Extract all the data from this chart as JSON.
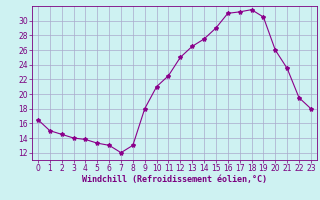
{
  "x": [
    0,
    1,
    2,
    3,
    4,
    5,
    6,
    7,
    8,
    9,
    10,
    11,
    12,
    13,
    14,
    15,
    16,
    17,
    18,
    19,
    20,
    21,
    22,
    23
  ],
  "y": [
    16.5,
    15.0,
    14.5,
    14.0,
    13.8,
    13.3,
    13.0,
    12.0,
    13.0,
    18.0,
    21.0,
    22.5,
    25.0,
    26.5,
    27.5,
    29.0,
    31.0,
    31.2,
    31.5,
    30.5,
    26.0,
    23.5,
    19.5,
    18.0
  ],
  "line_color": "#8B008B",
  "marker": "*",
  "marker_size": 3,
  "bg_color": "#cef2f2",
  "grid_color": "#aaaacc",
  "xlabel": "Windchill (Refroidissement éolien,°C)",
  "xlim": [
    -0.5,
    23.5
  ],
  "ylim": [
    11,
    32
  ],
  "yticks": [
    12,
    14,
    16,
    18,
    20,
    22,
    24,
    26,
    28,
    30
  ],
  "xticks": [
    0,
    1,
    2,
    3,
    4,
    5,
    6,
    7,
    8,
    9,
    10,
    11,
    12,
    13,
    14,
    15,
    16,
    17,
    18,
    19,
    20,
    21,
    22,
    23
  ],
  "tick_color": "#7B0080",
  "label_fontsize": 6.0,
  "tick_fontsize": 5.5
}
